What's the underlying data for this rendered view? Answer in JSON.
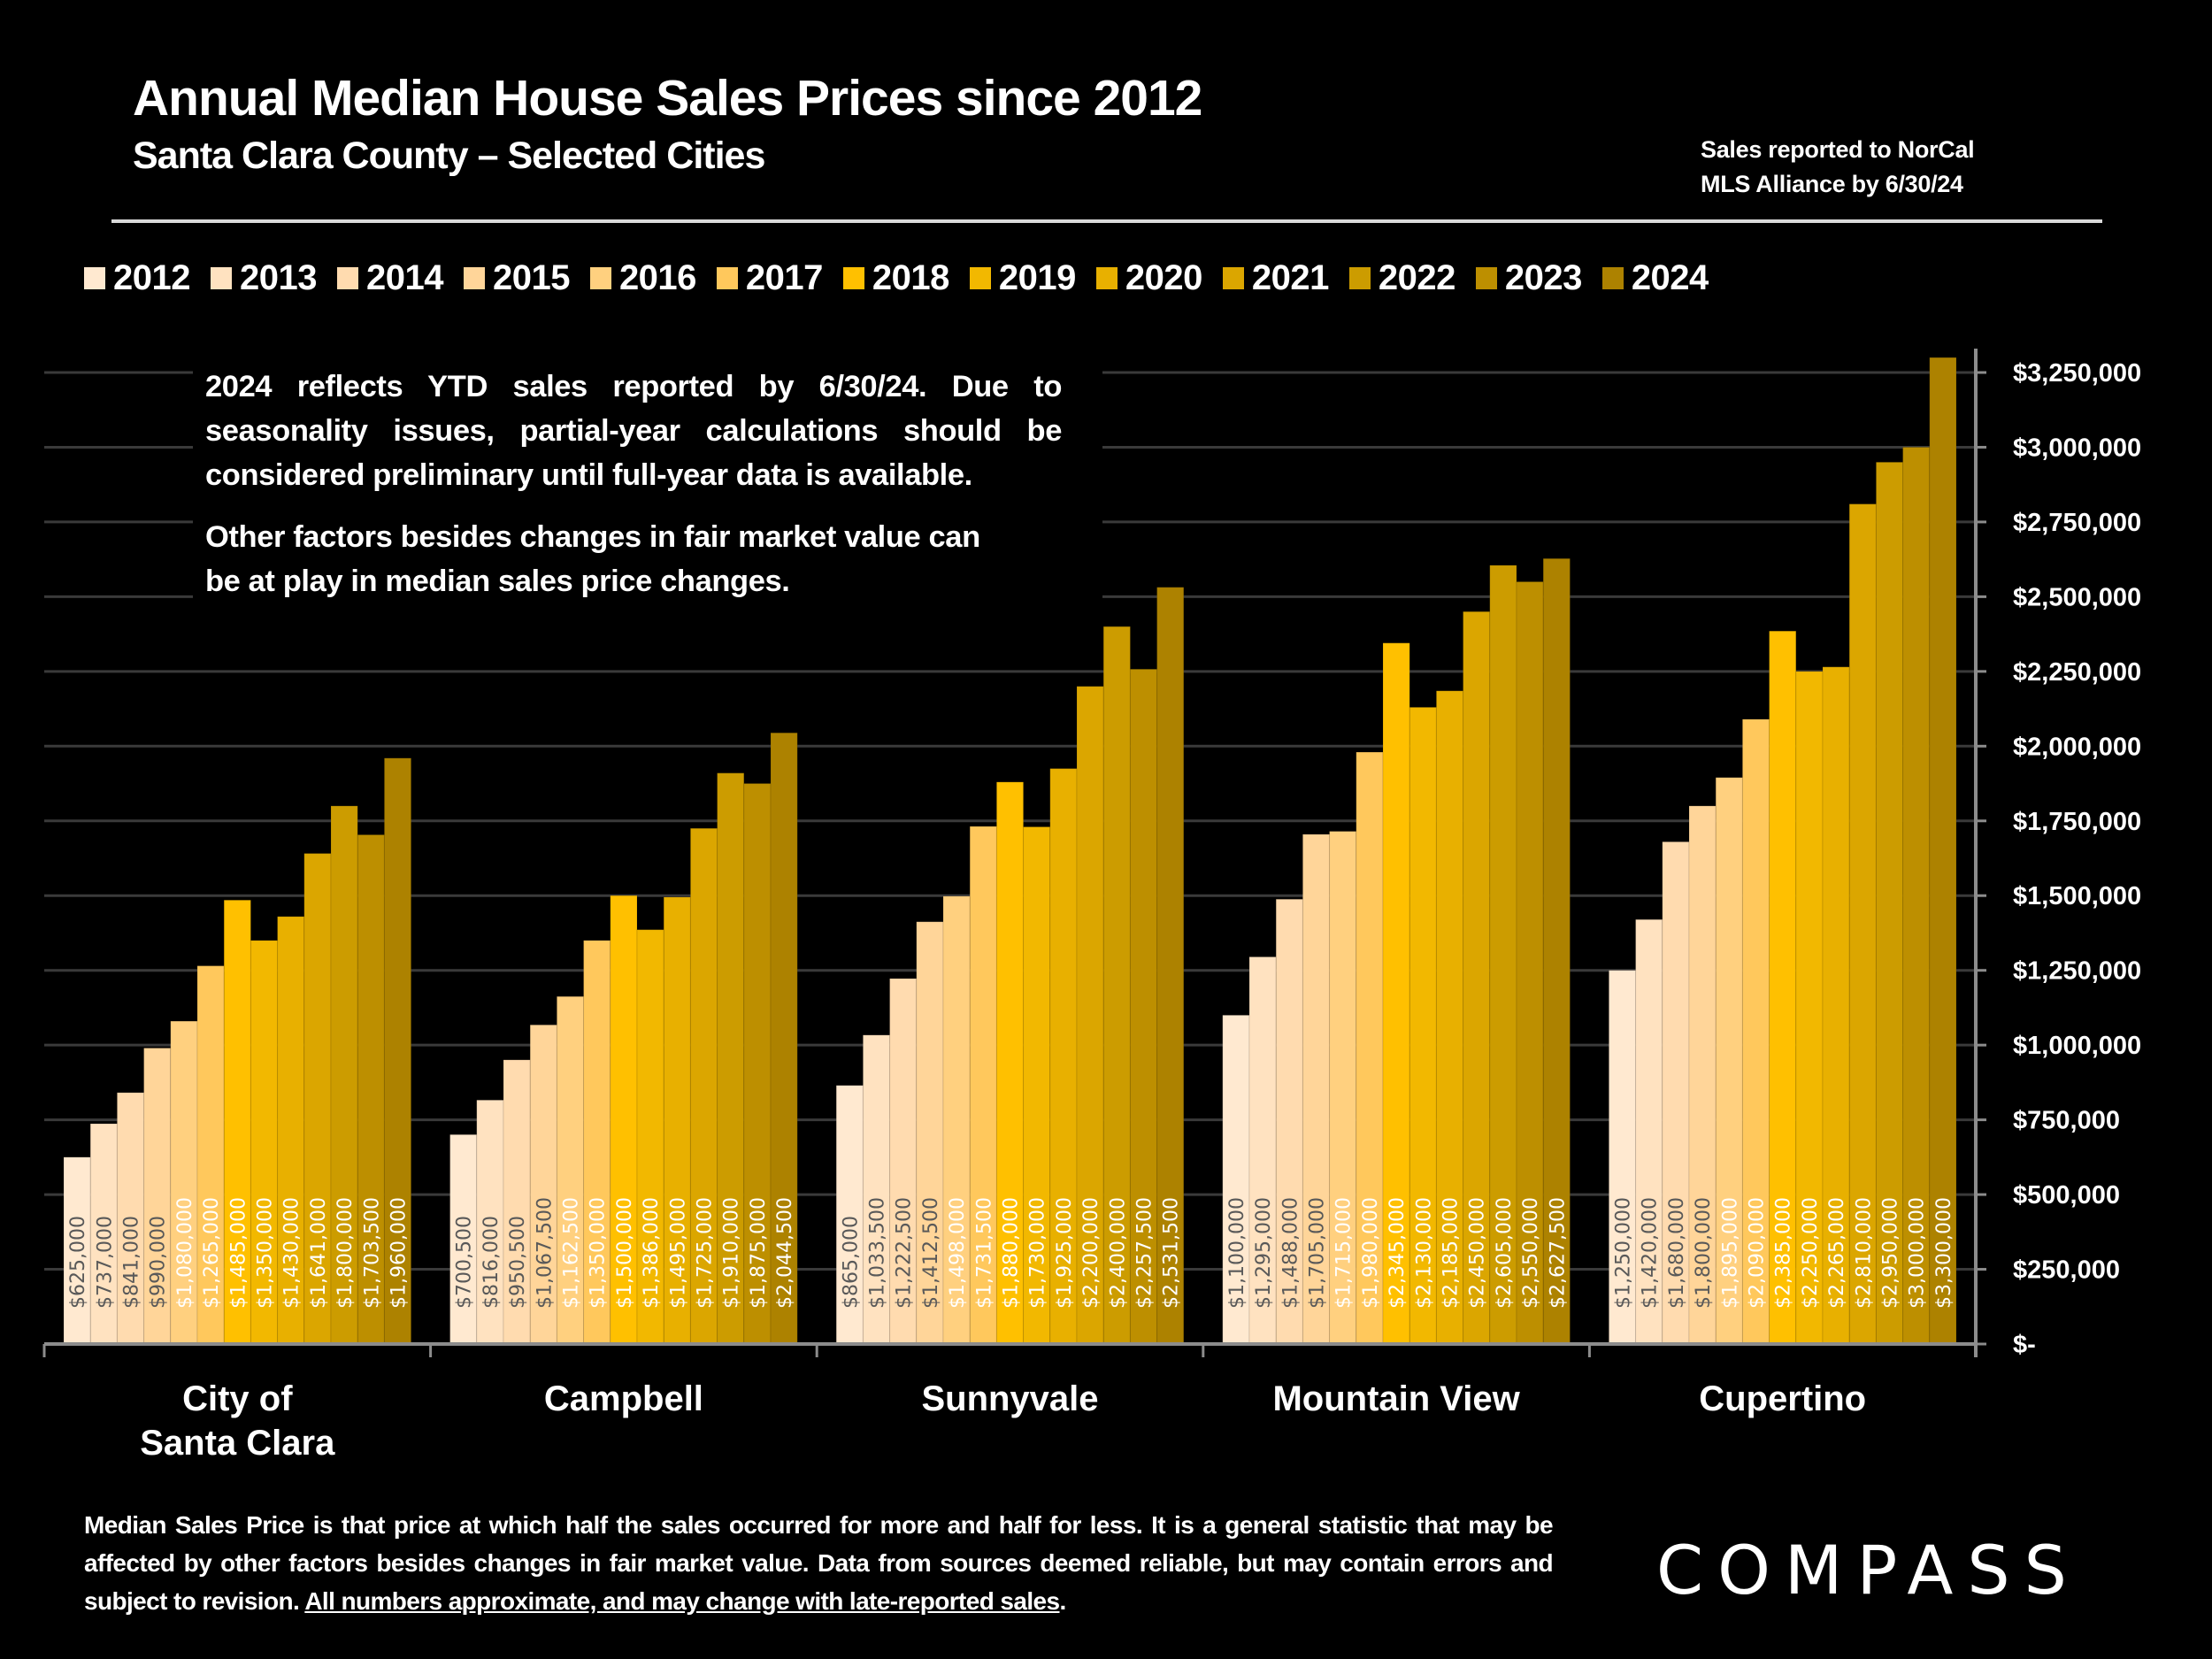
{
  "header": {
    "title": "Annual Median House Sales Prices since 2012",
    "subtitle": "Santa Clara County – Selected Cities",
    "source_note_line1": "Sales reported to NorCal",
    "source_note_line2": "MLS Alliance by 6/30/24"
  },
  "annotation": {
    "paragraph1": "2024 reflects YTD sales reported by 6/30/24. Due to seasonality issues, partial-year calculations should be considered preliminary until full-year data is available.",
    "paragraph2": "Other factors besides changes in fair market value can be at play in median sales price changes."
  },
  "footer": {
    "text": "Median Sales Price is that price at which half the sales occurred for more and half for less. It is a general statistic that may be affected by other factors besides changes in fair market value. Data from sources deemed reliable, but may contain errors and subject to revision. ",
    "underlined": "All numbers approximate, and may change with late-reported sales",
    "trailing": "."
  },
  "logo": {
    "text": "COMPASS",
    "icon": "compass-logo-icon"
  },
  "chart_data": {
    "type": "bar",
    "title": "Annual Median House Sales Prices since 2012",
    "subtitle": "Santa Clara County – Selected Cities",
    "xlabel": "",
    "ylabel": "",
    "categories": [
      [
        "City of",
        "Santa Clara"
      ],
      [
        "Campbell"
      ],
      [
        "Sunnyvale"
      ],
      [
        "Mountain View"
      ],
      [
        "Cupertino"
      ]
    ],
    "category_names": [
      "City of Santa Clara",
      "Campbell",
      "Sunnyvale",
      "Mountain View",
      "Cupertino"
    ],
    "ylim": [
      0,
      3330000
    ],
    "y_axis_position": "right",
    "y_ticks": [
      0,
      250000,
      500000,
      750000,
      1000000,
      1250000,
      1500000,
      1750000,
      2000000,
      2250000,
      2500000,
      2750000,
      3000000,
      3250000
    ],
    "y_tick_labels": [
      "$-",
      "$250,000",
      "$500,000",
      "$750,000",
      "$1,000,000",
      "$1,250,000",
      "$1,500,000",
      "$1,750,000",
      "$2,000,000",
      "$2,250,000",
      "$2,500,000",
      "$2,750,000",
      "$3,000,000",
      "$3,250,000"
    ],
    "grid": true,
    "legend_position": "top",
    "data_labels": "rotated-inside-bottom",
    "series": [
      {
        "name": "2012",
        "color": "#FFE9D0",
        "label_color": "#595959",
        "values": [
          625000,
          700500,
          865000,
          1100000,
          1250000
        ],
        "labels": [
          "$625,000",
          "$700,500",
          "$865,000",
          "$1,100,000",
          "$1,250,000"
        ]
      },
      {
        "name": "2013",
        "color": "#FFE2C0",
        "label_color": "#595959",
        "values": [
          737000,
          816000,
          1033500,
          1295000,
          1420000
        ],
        "labels": [
          "$737,000",
          "$816,000",
          "$1,033,500",
          "$1,295,000",
          "$1,420,000"
        ]
      },
      {
        "name": "2014",
        "color": "#FFDBAF",
        "label_color": "#595959",
        "values": [
          841000,
          950500,
          1222500,
          1488000,
          1680000
        ],
        "labels": [
          "$841,000",
          "$950,500",
          "$1,222,500",
          "$1,488,000",
          "$1,680,000"
        ]
      },
      {
        "name": "2015",
        "color": "#FFD599",
        "label_color": "#595959",
        "values": [
          990000,
          1067500,
          1412500,
          1705000,
          1800000
        ],
        "labels": [
          "$990,000",
          "$1,067,500",
          "$1,412,500",
          "$1,705,000",
          "$1,800,000"
        ]
      },
      {
        "name": "2016",
        "color": "#FFD07F",
        "label_color": "#FFFFFF",
        "values": [
          1080000,
          1162500,
          1498000,
          1715000,
          1895000
        ],
        "labels": [
          "$1,080,000",
          "$1,162,500",
          "$1,498,000",
          "$1,715,000",
          "$1,895,000"
        ]
      },
      {
        "name": "2017",
        "color": "#FFC85C",
        "label_color": "#FFFFFF",
        "values": [
          1265000,
          1350000,
          1731500,
          1980000,
          2090000
        ],
        "labels": [
          "$1,265,000",
          "$1,350,000",
          "$1,731,500",
          "$1,980,000",
          "$2,090,000"
        ]
      },
      {
        "name": "2018",
        "color": "#FFC000",
        "label_color": "#FFFFFF",
        "values": [
          1485000,
          1500000,
          1880000,
          2345000,
          2385000
        ],
        "labels": [
          "$1,485,000",
          "$1,500,000",
          "$1,880,000",
          "$2,345,000",
          "$2,385,000"
        ]
      },
      {
        "name": "2019",
        "color": "#F2B800",
        "label_color": "#FFFFFF",
        "values": [
          1350000,
          1386000,
          1730000,
          2130000,
          2250000
        ],
        "labels": [
          "$1,350,000",
          "$1,386,000",
          "$1,730,000",
          "$2,130,000",
          "$2,250,000"
        ]
      },
      {
        "name": "2020",
        "color": "#E8B000",
        "label_color": "#FFFFFF",
        "values": [
          1430000,
          1495000,
          1925000,
          2185000,
          2265000
        ],
        "labels": [
          "$1,430,000",
          "$1,495,000",
          "$1,925,000",
          "$2,185,000",
          "$2,265,000"
        ]
      },
      {
        "name": "2021",
        "color": "#DBA600",
        "label_color": "#FFFFFF",
        "values": [
          1641000,
          1725000,
          2200000,
          2450000,
          2810000
        ],
        "labels": [
          "$1,641,000",
          "$1,725,000",
          "$2,200,000",
          "$2,450,000",
          "$2,810,000"
        ]
      },
      {
        "name": "2022",
        "color": "#CC9C00",
        "label_color": "#FFFFFF",
        "values": [
          1800000,
          1910000,
          2400000,
          2605000,
          2950000
        ],
        "labels": [
          "$1,800,000",
          "$1,910,000",
          "$2,400,000",
          "$2,605,000",
          "$2,950,000"
        ]
      },
      {
        "name": "2023",
        "color": "#BD8F00",
        "label_color": "#FFFFFF",
        "values": [
          1703500,
          1875000,
          2257500,
          2550000,
          3000000
        ],
        "labels": [
          "$1,703,500",
          "$1,875,000",
          "$2,257,500",
          "$2,550,000",
          "$3,000,000"
        ]
      },
      {
        "name": "2024",
        "color": "#AD8200",
        "label_color": "#FFFFFF",
        "values": [
          1960000,
          2044500,
          2531500,
          2627500,
          3300000
        ],
        "labels": [
          "$1,960,000",
          "$2,044,500",
          "$2,531,500",
          "$2,627,500",
          "$3,300,000"
        ]
      }
    ]
  }
}
